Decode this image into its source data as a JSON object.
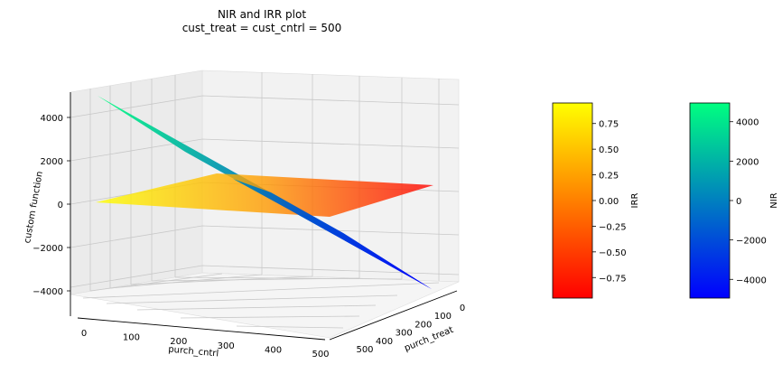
{
  "chart_data": {
    "type": "surface3d",
    "title": "NIR and IRR plot",
    "subtitle": "cust_treat = cust_cntrl = 500",
    "xlabel": "purch_cntrl",
    "ylabel": "purch_treat",
    "zlabel": "custom function",
    "xlim": [
      0,
      500
    ],
    "ylim": [
      0,
      500
    ],
    "zlim": [
      -5000,
      5000
    ],
    "x_ticks": [
      0,
      100,
      200,
      300,
      400,
      500
    ],
    "y_ticks": [
      0,
      100,
      200,
      300,
      400,
      500
    ],
    "z_ticks": [
      -4000,
      -2000,
      0,
      2000,
      4000
    ],
    "x_tick_labels": [
      "0",
      "100",
      "200",
      "300",
      "400",
      "500"
    ],
    "y_tick_labels": [
      "0",
      "100",
      "200",
      "300",
      "400",
      "500"
    ],
    "z_tick_labels": [
      "−4000",
      "−2000",
      "0",
      "2000",
      "4000"
    ],
    "grid": true,
    "series": [
      {
        "name": "NIR",
        "colormap": "winter",
        "formula": "purch_treat - purch_cntrl (scaled 10x per unit of purchase difference)",
        "corners": [
          {
            "purch_cntrl": 0,
            "purch_treat": 0,
            "z": 0
          },
          {
            "purch_cntrl": 500,
            "purch_treat": 0,
            "z": -5000
          },
          {
            "purch_cntrl": 500,
            "purch_treat": 500,
            "z": 0
          },
          {
            "purch_cntrl": 0,
            "purch_treat": 500,
            "z": 5000
          }
        ]
      },
      {
        "name": "IRR",
        "colormap": "autumn",
        "corners": [
          {
            "purch_cntrl": 0,
            "purch_treat": 0,
            "z": 0
          },
          {
            "purch_cntrl": 500,
            "purch_treat": 0,
            "z": -1
          },
          {
            "purch_cntrl": 500,
            "purch_treat": 500,
            "z": 0
          },
          {
            "purch_cntrl": 0,
            "purch_treat": 500,
            "z": 1
          }
        ]
      }
    ],
    "colorbars": [
      {
        "name": "IRR",
        "label": "IRR",
        "range": [
          -0.95,
          0.95
        ],
        "ticks": [
          -0.75,
          -0.5,
          -0.25,
          0,
          0.25,
          0.5,
          0.75
        ],
        "tick_labels": [
          "−0.75",
          "−0.50",
          "−0.25",
          "0.00",
          "0.25",
          "0.50",
          "0.75"
        ],
        "colors": [
          "#ff0000",
          "#ffff00"
        ]
      },
      {
        "name": "NIR",
        "label": "NIR",
        "range": [
          -4950,
          4950
        ],
        "ticks": [
          -4000,
          -2000,
          0,
          2000,
          4000
        ],
        "tick_labels": [
          "−4000",
          "−2000",
          "0",
          "2000",
          "4000"
        ],
        "colors": [
          "#0000ff",
          "#00ff80"
        ]
      }
    ]
  }
}
